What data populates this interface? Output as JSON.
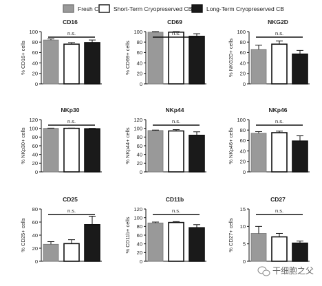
{
  "legend": [
    {
      "name": "Fresh CB",
      "color": "#999999",
      "border": "#777777"
    },
    {
      "name": "Short-Term Cryopreserved CB",
      "color": "#ffffff",
      "border": "#111111"
    },
    {
      "name": "Long-Term Cryopreserved CB",
      "color": "#1a1a1a",
      "border": "#111111"
    }
  ],
  "chart_data": [
    {
      "type": "bar",
      "title": "CD16",
      "ylabel": "% CD16+ cells",
      "ylim": [
        0,
        100
      ],
      "ticks": [
        0,
        20,
        40,
        60,
        80,
        100
      ],
      "categories": [
        "Fresh CB",
        "Short-Term Cryopreserved CB",
        "Long-Term Cryopreserved CB"
      ],
      "values": [
        84,
        76,
        79
      ],
      "errors": [
        2,
        3,
        5
      ],
      "annotation": "n.s."
    },
    {
      "type": "bar",
      "title": "CD69",
      "ylabel": "% CD69+ cells",
      "ylim": [
        0,
        100
      ],
      "ticks": [
        0,
        20,
        40,
        60,
        80,
        100
      ],
      "categories": [
        "Fresh CB",
        "Short-Term Cryopreserved CB",
        "Long-Term Cryopreserved CB"
      ],
      "values": [
        99,
        99,
        91
      ],
      "errors": [
        1,
        1,
        5
      ],
      "annotation": "n.s."
    },
    {
      "type": "bar",
      "title": "NKG2D",
      "ylabel": "% NKG2D+ cells",
      "ylim": [
        0,
        100
      ],
      "ticks": [
        0,
        20,
        40,
        60,
        80,
        100
      ],
      "categories": [
        "Fresh CB",
        "Short-Term Cryopreserved CB",
        "Long-Term Cryopreserved CB"
      ],
      "values": [
        66,
        76,
        57
      ],
      "errors": [
        8,
        6,
        7
      ],
      "annotation": "n.s."
    },
    {
      "type": "bar",
      "title": "NKp30",
      "ylabel": "% NKp30+ cells",
      "ylim": [
        0,
        120
      ],
      "ticks": [
        0,
        20,
        40,
        60,
        80,
        100,
        120
      ],
      "categories": [
        "Fresh CB",
        "Short-Term Cryopreserved CB",
        "Long-Term Cryopreserved CB"
      ],
      "values": [
        100,
        100,
        99
      ],
      "errors": [
        0.5,
        0.5,
        1
      ],
      "annotation": "n.s."
    },
    {
      "type": "bar",
      "title": "NKp44",
      "ylabel": "% NKp44+ cells",
      "ylim": [
        0,
        120
      ],
      "ticks": [
        0,
        20,
        40,
        60,
        80,
        100,
        120
      ],
      "categories": [
        "Fresh CB",
        "Short-Term Cryopreserved CB",
        "Long-Term Cryopreserved CB"
      ],
      "values": [
        95,
        94,
        84
      ],
      "errors": [
        1,
        3,
        8
      ],
      "annotation": "n.s."
    },
    {
      "type": "bar",
      "title": "NKp46",
      "ylabel": "% NKp46+ cells",
      "ylim": [
        0,
        100
      ],
      "ticks": [
        0,
        20,
        40,
        60,
        80,
        100
      ],
      "categories": [
        "Fresh CB",
        "Short-Term Cryopreserved CB",
        "Long-Term Cryopreserved CB"
      ],
      "values": [
        74,
        75,
        59
      ],
      "errors": [
        3,
        3,
        10
      ],
      "annotation": "n.s."
    },
    {
      "type": "bar",
      "title": "CD25",
      "ylabel": "% CD25+ cells",
      "ylim": [
        0,
        80
      ],
      "ticks": [
        0,
        20,
        40,
        60,
        80
      ],
      "categories": [
        "Fresh CB",
        "Short-Term Cryopreserved CB",
        "Long-Term Cryopreserved CB"
      ],
      "values": [
        26,
        27,
        56
      ],
      "errors": [
        4,
        6,
        13
      ],
      "annotation": "n.s."
    },
    {
      "type": "bar",
      "title": "CD11b",
      "ylabel": "% CD11b+ cells",
      "ylim": [
        0,
        120
      ],
      "ticks": [
        0,
        20,
        40,
        60,
        80,
        100,
        120
      ],
      "categories": [
        "Fresh CB",
        "Short-Term Cryopreserved CB",
        "Long-Term Cryopreserved CB"
      ],
      "values": [
        88,
        89,
        77
      ],
      "errors": [
        2,
        2,
        7
      ],
      "annotation": "n.s."
    },
    {
      "type": "bar",
      "title": "CD27",
      "ylabel": "% CD27+ cells",
      "ylim": [
        0,
        15
      ],
      "ticks": [
        0,
        5,
        10,
        15
      ],
      "categories": [
        "Fresh CB",
        "Short-Term Cryopreserved CB",
        "Long-Term Cryopreserved CB"
      ],
      "values": [
        8,
        7,
        5.2
      ],
      "errors": [
        2,
        1,
        0.6
      ],
      "annotation": "n.s."
    }
  ],
  "watermark": "干细胞之父"
}
